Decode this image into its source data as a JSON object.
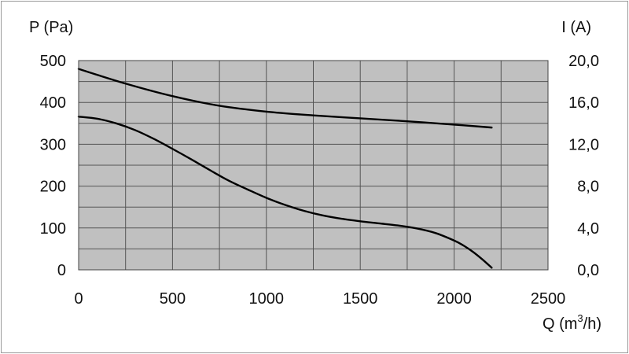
{
  "chart_data": {
    "type": "line",
    "title": "",
    "xlabel_prefix": "Q (m",
    "xlabel_sup": "3",
    "xlabel_suffix": "/h)",
    "ylabel_left": "P (Pa)",
    "ylabel_right": "I (A)",
    "xlim": [
      0,
      2500
    ],
    "ylim_left": [
      0,
      500
    ],
    "ylim_right": [
      0,
      20
    ],
    "grid": true,
    "plot_background": "#c0c0c0",
    "line_color": "#000000",
    "x_ticks": [
      "0",
      "500",
      "1000",
      "1500",
      "2000",
      "2500"
    ],
    "x_tick_values": [
      0,
      500,
      1000,
      1500,
      2000,
      2500
    ],
    "y_ticks_left": [
      "0",
      "100",
      "200",
      "300",
      "400",
      "500"
    ],
    "y_tick_values_left": [
      0,
      100,
      200,
      300,
      400,
      500
    ],
    "y_ticks_right": [
      "0,0",
      "4,0",
      "8,0",
      "12,0",
      "16,0",
      "20,0"
    ],
    "y_tick_values_right": [
      0,
      4,
      8,
      12,
      16,
      20
    ],
    "series": [
      {
        "axis": "left",
        "x": [
          0,
          250,
          500,
          750,
          1000,
          1250,
          1500,
          1750,
          2000,
          2200
        ],
        "values": [
          480,
          445,
          415,
          392,
          378,
          369,
          362,
          355,
          347,
          340
        ]
      },
      {
        "axis": "left",
        "x": [
          0,
          100,
          200,
          300,
          400,
          500,
          600,
          700,
          800,
          900,
          1000,
          1100,
          1200,
          1300,
          1400,
          1500,
          1600,
          1700,
          1800,
          1900,
          2000,
          2050,
          2100,
          2150,
          2200
        ],
        "values": [
          366,
          361,
          350,
          334,
          313,
          289,
          264,
          238,
          213,
          192,
          172,
          155,
          141,
          130,
          122,
          116,
          111,
          106,
          99,
          88,
          70,
          58,
          43,
          25,
          5
        ]
      }
    ]
  }
}
